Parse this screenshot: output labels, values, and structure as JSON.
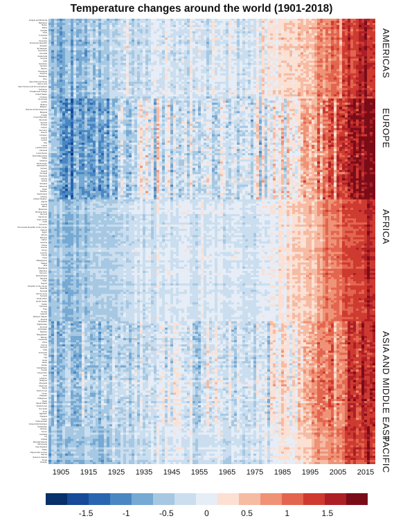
{
  "chart_data": {
    "type": "heatmap",
    "title": "Temperature changes around the world (1901-2018)",
    "x_start": 1901,
    "x_end": 2018,
    "x_ticks": [
      "1905",
      "1915",
      "1925",
      "1935",
      "1945",
      "1955",
      "1965",
      "1975",
      "1985",
      "1995",
      "2005",
      "2015"
    ],
    "regions": [
      {
        "name": "AMERICAS",
        "rows": 38
      },
      {
        "name": "EUROPE",
        "rows": 48
      },
      {
        "name": "AFRICA",
        "rows": 58
      },
      {
        "name": "ASIA AND MIDDLE EAST",
        "rows": 50
      },
      {
        "name": "PACIFIC",
        "rows": 18
      }
    ],
    "countries_visible": [
      "Antigua and Barbuda",
      "Barbados",
      "Belize",
      "Brazil",
      "Canada",
      "Chile",
      "Colombia",
      "Cuba",
      "Dominica",
      "Dominican Republic",
      "Ecuador",
      "El Salvador",
      "Greenland",
      "Grenada",
      "Guatemala",
      "Guyana",
      "Haiti",
      "Honduras",
      "Jamaica",
      "Mexico",
      "Nicaragua",
      "Panama",
      "Paraguay",
      "Peru",
      "Saint Kitts and Nevis",
      "Saint Lucia",
      "Saint Vincent and the Grenadines",
      "Suriname",
      "Trinidad and Tobago",
      "United States",
      "Uruguay",
      "Venezuela",
      "Austria",
      "Belarus",
      "Belgium",
      "Bosnia and Herzegovina",
      "Bulgaria",
      "Croatia",
      "Czech Republic",
      "Denmark",
      "Estonia",
      "Finland",
      "France",
      "Germany",
      "Greece",
      "Hungary",
      "Iceland",
      "Ireland",
      "Italy",
      "Latvia",
      "Liechtenstein",
      "Lithuania",
      "Luxembourg",
      "North Macedonia",
      "Malta",
      "Moldova",
      "Montenegro",
      "Netherlands",
      "Norway",
      "Poland",
      "Portugal",
      "Romania",
      "Russia",
      "Serbia",
      "Slovakia",
      "Slovenia",
      "Spain",
      "Sweden",
      "Switzerland",
      "Ukraine",
      "United Kingdom",
      "Algeria",
      "Angola",
      "Benin",
      "Botswana",
      "Burkina Faso",
      "Burundi",
      "Cameroon",
      "Cape Verde",
      "Chad",
      "Comoros",
      "Democratic Republic of the Congo",
      "Djibouti",
      "Egypt",
      "Eritrea",
      "Ethiopia",
      "Gabon",
      "Gambia",
      "Ghana",
      "Guinea",
      "Kenya",
      "Lesotho",
      "Liberia",
      "Libya",
      "Madagascar",
      "Malawi",
      "Mali",
      "Mauritania",
      "Mauritius",
      "Morocco",
      "Mozambique",
      "Namibia",
      "Niger",
      "Nigeria",
      "Republic of the Congo",
      "Rwanda",
      "Senegal",
      "Sierra Leone",
      "Somalia",
      "South Africa",
      "South Sudan",
      "Sudan",
      "Tanzania",
      "Togo",
      "Tunisia",
      "Uganda",
      "Western Sahara",
      "Zambia",
      "Zimbabwe",
      "Afghanistan",
      "Armenia",
      "Azerbaijan",
      "Bahrain",
      "Bangladesh",
      "Bhutan",
      "Cambodia",
      "China",
      "Cyprus",
      "Georgia",
      "India",
      "Indonesia",
      "Iran",
      "Iraq",
      "Israel",
      "Japan",
      "Jordan",
      "Kazakhstan",
      "Kuwait",
      "Kyrgyzstan",
      "Laos",
      "Lebanon",
      "Malaysia",
      "Mongolia",
      "Myanmar",
      "Nepal",
      "North Korea",
      "Oman",
      "Pakistan",
      "Philippines",
      "Qatar",
      "Saudi Arabia",
      "South Korea",
      "Sri Lanka",
      "Syria",
      "Tajikistan",
      "Thailand",
      "Turkey",
      "Turkmenistan",
      "United Arab Emirates",
      "Uzbekistan",
      "Vietnam",
      "Yemen",
      "Australia",
      "Fiji",
      "Kiribati",
      "Marshall Islands",
      "Micronesia",
      "New Zealand",
      "Palau",
      "Papua New Guinea",
      "Samoa",
      "Solomon Islands",
      "Tonga",
      "Vanuatu"
    ],
    "colorscale": [
      "#08306b",
      "#174a98",
      "#2866b0",
      "#4a87c2",
      "#76a9d3",
      "#a6c8e2",
      "#cadeef",
      "#e6edf6",
      "#fbe0d3",
      "#f6bba3",
      "#ef9276",
      "#e3654f",
      "#cf3a30",
      "#ad1f26",
      "#7a0c18"
    ],
    "colorbar": {
      "min": -2,
      "max": 2,
      "tick_labels": [
        "-1.5",
        "-1",
        "-0.5",
        "0",
        "0.5",
        "1",
        "1.5"
      ]
    },
    "legend_placement": "bottom",
    "grid": false
  }
}
